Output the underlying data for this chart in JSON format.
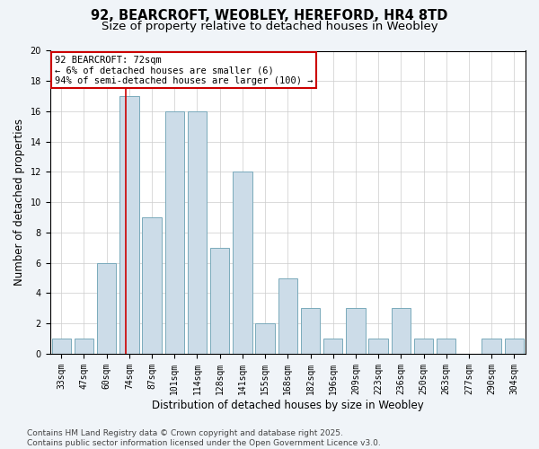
{
  "title": "92, BEARCROFT, WEOBLEY, HEREFORD, HR4 8TD",
  "subtitle": "Size of property relative to detached houses in Weobley",
  "xlabel": "Distribution of detached houses by size in Weobley",
  "ylabel": "Number of detached properties",
  "bins": [
    "33sqm",
    "47sqm",
    "60sqm",
    "74sqm",
    "87sqm",
    "101sqm",
    "114sqm",
    "128sqm",
    "141sqm",
    "155sqm",
    "168sqm",
    "182sqm",
    "196sqm",
    "209sqm",
    "223sqm",
    "236sqm",
    "250sqm",
    "263sqm",
    "277sqm",
    "290sqm",
    "304sqm"
  ],
  "values": [
    1,
    1,
    6,
    17,
    9,
    16,
    16,
    7,
    12,
    2,
    5,
    3,
    1,
    3,
    1,
    3,
    1,
    1,
    0,
    1,
    1
  ],
  "bar_color": "#ccdce8",
  "bar_edgecolor": "#7aaabb",
  "annotation_line_color": "#cc0000",
  "annotation_box_edgecolor": "#cc0000",
  "annotation_text_line1": "92 BEARCROFT: 72sqm",
  "annotation_text_line2": "← 6% of detached houses are smaller (6)",
  "annotation_text_line3": "94% of semi-detached houses are larger (100) →",
  "property_bin_index": 3,
  "footnote": "Contains HM Land Registry data © Crown copyright and database right 2025.\nContains public sector information licensed under the Open Government Licence v3.0.",
  "ylim": [
    0,
    20
  ],
  "yticks": [
    0,
    2,
    4,
    6,
    8,
    10,
    12,
    14,
    16,
    18,
    20
  ],
  "background_color": "#f0f4f8",
  "plot_background_color": "#ffffff",
  "grid_color": "#cccccc",
  "title_fontsize": 10.5,
  "subtitle_fontsize": 9.5,
  "axis_label_fontsize": 8.5,
  "tick_fontsize": 7,
  "footnote_fontsize": 6.5,
  "annotation_fontsize": 7.5
}
